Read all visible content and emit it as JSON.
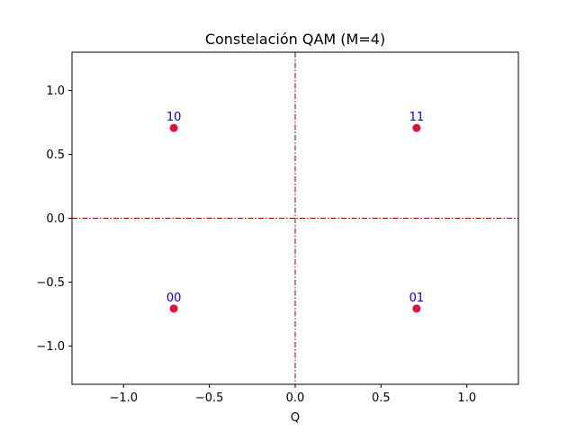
{
  "chart_data": {
    "type": "scatter",
    "title": "Constelación QAM (M=4)",
    "xlabel": "Q",
    "ylabel": "",
    "xlim": [
      -1.3,
      1.3
    ],
    "ylim": [
      -1.3,
      1.3
    ],
    "x_ticks": [
      -1.0,
      -0.5,
      0.0,
      0.5,
      1.0
    ],
    "x_tick_labels": [
      "−1.0",
      "−0.5",
      "0.0",
      "0.5",
      "1.0"
    ],
    "y_ticks": [
      -1.0,
      -0.5,
      0.0,
      0.5,
      1.0
    ],
    "y_tick_labels": [
      "−1.0",
      "−0.5",
      "0.0",
      "0.5",
      "1.0"
    ],
    "grid": false,
    "reference_lines": {
      "x": 0,
      "y": 0,
      "style": "dash-dot",
      "color": "#8b0000"
    },
    "marker_color": "#dc143c",
    "label_color": "#0000cd",
    "points": [
      {
        "x": -0.707,
        "y": 0.707,
        "label": "10"
      },
      {
        "x": 0.707,
        "y": 0.707,
        "label": "11"
      },
      {
        "x": -0.707,
        "y": -0.707,
        "label": "00"
      },
      {
        "x": 0.707,
        "y": -0.707,
        "label": "01"
      }
    ]
  }
}
